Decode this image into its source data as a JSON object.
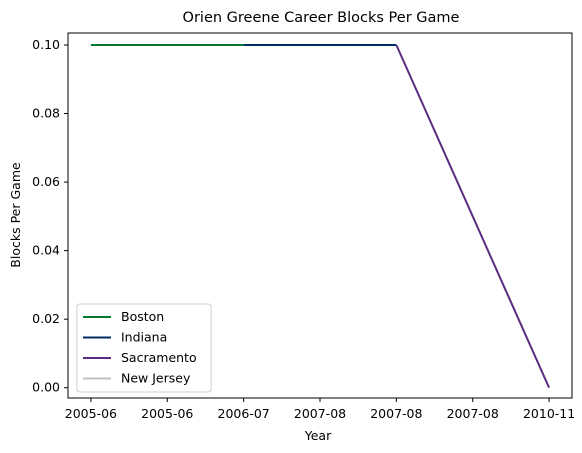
{
  "chart_data": {
    "type": "line",
    "title": "Orien Greene Career Blocks Per Game",
    "xlabel": "Year",
    "ylabel": "Blocks Per Game",
    "categories": [
      "2005-06",
      "2005-06",
      "2006-07",
      "2007-08",
      "2007-08",
      "2007-08",
      "2010-11"
    ],
    "ylim": [
      -0.003,
      0.1035
    ],
    "y_ticks": [
      "0.00",
      "0.02",
      "0.04",
      "0.06",
      "0.08",
      "0.10"
    ],
    "y_tick_values": [
      0,
      0.02,
      0.04,
      0.06,
      0.08,
      0.1
    ],
    "grid": false,
    "legend_position": "lower-left",
    "series": [
      {
        "name": "Boston",
        "color": "#007A33",
        "x": [
          0,
          2
        ],
        "values": [
          0.1,
          0.1
        ]
      },
      {
        "name": "Indiana",
        "color": "#002D62",
        "x": [
          2,
          4
        ],
        "values": [
          0.1,
          0.1
        ]
      },
      {
        "name": "Sacramento",
        "color": "#5A2D81",
        "x": [
          4,
          6
        ],
        "values": [
          0.1,
          0.0
        ]
      },
      {
        "name": "New Jersey",
        "color": "#C0C0C0",
        "x": [],
        "values": []
      }
    ]
  }
}
